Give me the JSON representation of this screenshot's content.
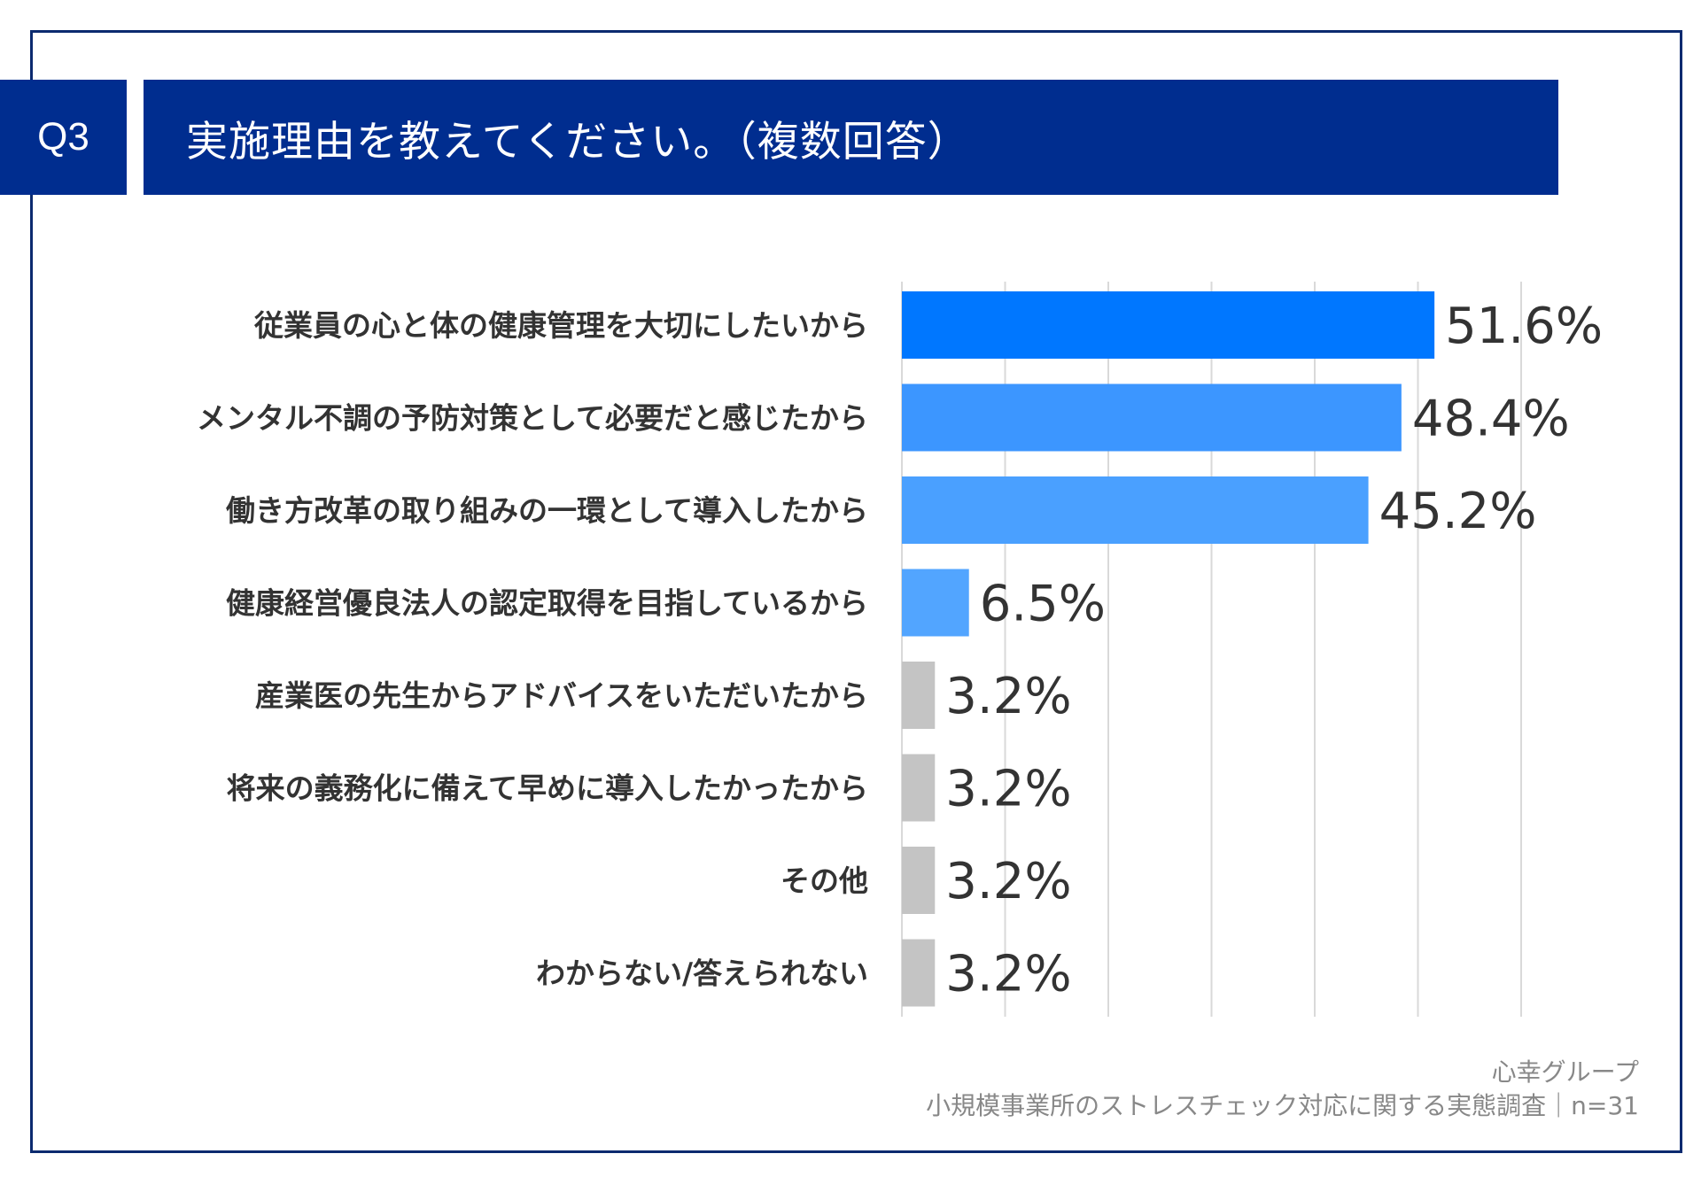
{
  "header": {
    "question_number": "Q3",
    "title": "実施理由を教えてください。（複数回答）"
  },
  "chart_data": {
    "type": "bar",
    "orientation": "horizontal",
    "categories": [
      "従業員の心と体の健康管理を大切にしたいから",
      "メンタル不調の予防対策として必要だと感じたから",
      "働き方改革の取り組みの一環として導入したから",
      "健康経営優良法人の認定取得を目指しているから",
      "産業医の先生からアドバイスをいただいたから",
      "将来の義務化に備えて早めに導入したかったから",
      "その他",
      "わからない/答えられない"
    ],
    "values": [
      51.6,
      48.4,
      45.2,
      6.5,
      3.2,
      3.2,
      3.2,
      3.2
    ],
    "value_labels": [
      "51.6%",
      "48.4%",
      "45.2%",
      "6.5%",
      "3.2%",
      "3.2%",
      "3.2%",
      "3.2%"
    ],
    "bar_colors": [
      "#0077ff",
      "#3c96ff",
      "#4aa0ff",
      "#52a5ff",
      "#c4c4c4",
      "#c4c4c4",
      "#c4c4c4",
      "#c4c4c4"
    ],
    "xlim": [
      0,
      60
    ],
    "grid": true
  },
  "footer": {
    "company": "心幸グループ",
    "survey": "小規模事業所のストレスチェック対応に関する実態調査｜n=31"
  }
}
